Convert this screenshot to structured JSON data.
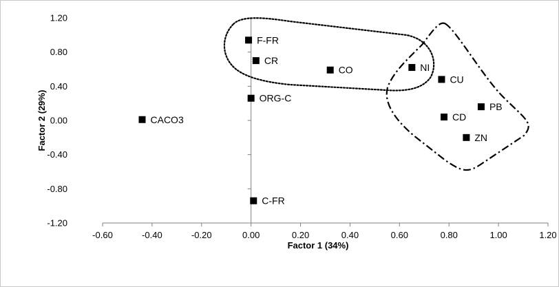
{
  "chart_data": {
    "type": "scatter",
    "title": "",
    "xlabel": "Factor 1 (34%)",
    "ylabel": "Factor 2 (29%)",
    "xlim": [
      -0.6,
      1.2
    ],
    "ylim": [
      -1.2,
      1.2
    ],
    "x_ticks": [
      -0.6,
      -0.4,
      -0.2,
      0.0,
      0.2,
      0.4,
      0.6,
      0.8,
      1.0,
      1.2
    ],
    "y_ticks": [
      -1.2,
      -0.8,
      -0.4,
      0.0,
      0.4,
      0.8,
      1.2
    ],
    "grid": false,
    "marker": "square",
    "marker_color": "#000000",
    "points": [
      {
        "label": "F-FR",
        "x": -0.01,
        "y": 0.94
      },
      {
        "label": "CR",
        "x": 0.02,
        "y": 0.7
      },
      {
        "label": "CO",
        "x": 0.32,
        "y": 0.59
      },
      {
        "label": "NI",
        "x": 0.65,
        "y": 0.62
      },
      {
        "label": "CU",
        "x": 0.77,
        "y": 0.48
      },
      {
        "label": "PB",
        "x": 0.93,
        "y": 0.16
      },
      {
        "label": "CD",
        "x": 0.78,
        "y": 0.04
      },
      {
        "label": "ZN",
        "x": 0.87,
        "y": -0.2
      },
      {
        "label": "ORG-C",
        "x": 0.0,
        "y": 0.26
      },
      {
        "label": "CACO3",
        "x": -0.44,
        "y": 0.01
      },
      {
        "label": "C-FR",
        "x": 0.01,
        "y": -0.94
      }
    ],
    "groupings": [
      {
        "style": "dotted",
        "color": "#000000",
        "members": [
          "F-FR",
          "CR",
          "CO",
          "NI"
        ]
      },
      {
        "style": "dash-dot",
        "color": "#000000",
        "members": [
          "NI",
          "CU",
          "PB",
          "CD",
          "ZN"
        ]
      }
    ]
  }
}
